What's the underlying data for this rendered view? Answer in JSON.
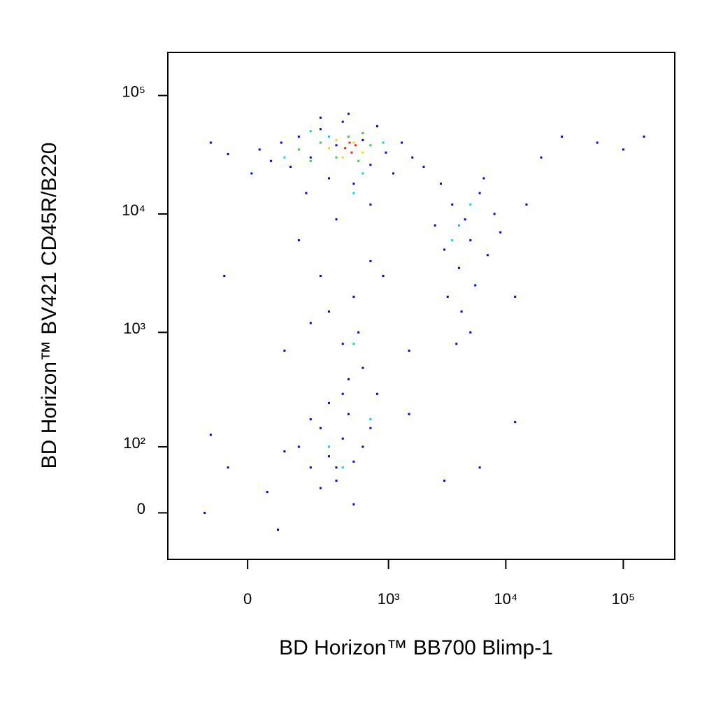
{
  "chart_data": {
    "type": "scatter",
    "xlabel": "BD Horizon™ BB700 Blimp-1",
    "ylabel": "BD Horizon™ BV421 CD45R/B220",
    "xscale": "biexponential",
    "yscale": "biexponential",
    "xlim": [
      -290,
      274000
    ],
    "ylim": [
      -62,
      231000
    ],
    "xticks": [
      0,
      {
        "value": 1000,
        "label": "10³"
      },
      {
        "value": 10000,
        "label": "10⁴"
      },
      {
        "value": 100000,
        "label": "10⁵"
      }
    ],
    "yticks": [
      0,
      {
        "value": 100,
        "label": "10²"
      },
      {
        "value": 1000,
        "label": "10³"
      },
      {
        "value": 10000,
        "label": "10⁴"
      },
      {
        "value": 100000,
        "label": "10⁵"
      }
    ],
    "series": [
      {
        "color": "#0000ff",
        "x": [
          30,
          60,
          90,
          120,
          150,
          200,
          250,
          300,
          350,
          400,
          500,
          600,
          700,
          800,
          950,
          1100,
          1300,
          1600,
          2000,
          -50,
          10,
          -100,
          180,
          700,
          450,
          250,
          2500,
          3000,
          3500,
          4000,
          4500,
          5000,
          6000,
          7000,
          3200,
          4200,
          5500,
          2800,
          8000,
          9000,
          3800,
          5000,
          6500,
          12000,
          20000,
          30000,
          60000,
          100000,
          150000,
          15000,
          150,
          250,
          300,
          400,
          500,
          600,
          700,
          350,
          200,
          900,
          450,
          550,
          -60,
          100,
          1500,
          800,
          150,
          200,
          250,
          300,
          350,
          400,
          450,
          500,
          600,
          250,
          300,
          200,
          100,
          -50,
          -100,
          700,
          1500,
          3000,
          6000,
          12000,
          50,
          400,
          350,
          -120,
          80,
          500
        ],
        "values": [
          35000,
          28000,
          40000,
          25000,
          45000,
          30000,
          52000,
          20000,
          38000,
          60000,
          18000,
          42000,
          26000,
          55000,
          33000,
          22000,
          40000,
          30000,
          25000,
          32000,
          22000,
          40000,
          15000,
          12000,
          70000,
          65000,
          8000,
          5000,
          12000,
          3500,
          9000,
          6000,
          15000,
          4500,
          2000,
          1500,
          2500,
          18000,
          10000,
          7000,
          800,
          1000,
          20000,
          2000,
          30000,
          45000,
          40000,
          35000,
          45000,
          12000,
          6000,
          3000,
          1500,
          800,
          2000,
          500,
          4000,
          9000,
          1200,
          3000,
          400,
          1000,
          3000,
          700,
          700,
          300,
          100,
          60,
          150,
          80,
          40,
          120,
          200,
          70,
          100,
          30,
          250,
          180,
          90,
          60,
          130,
          150,
          200,
          40,
          60,
          170,
          25,
          300,
          60,
          0,
          -20,
          10
        ]
      },
      {
        "color": "#00d8e0",
        "x": [
          100,
          300,
          600,
          900,
          200,
          500,
          4000,
          5000,
          3500,
          300,
          400,
          700,
          500
        ],
        "values": [
          30000,
          45000,
          22000,
          40000,
          50000,
          15000,
          8000,
          12000,
          6000,
          100,
          60,
          180,
          800
        ]
      },
      {
        "color": "#30d040",
        "x": [
          150,
          250,
          350,
          450,
          550,
          700,
          200,
          600
        ],
        "values": [
          35000,
          40000,
          30000,
          45000,
          28000,
          38000,
          28000,
          48000
        ]
      },
      {
        "color": "#e8e000",
        "x": [
          300,
          400,
          500,
          600,
          350
        ],
        "values": [
          36000,
          30000,
          40000,
          33000,
          42000
        ]
      },
      {
        "color": "#ff2000",
        "x": [
          420,
          480,
          520,
          460
        ],
        "values": [
          36000,
          33000,
          38000,
          40000
        ]
      }
    ]
  }
}
